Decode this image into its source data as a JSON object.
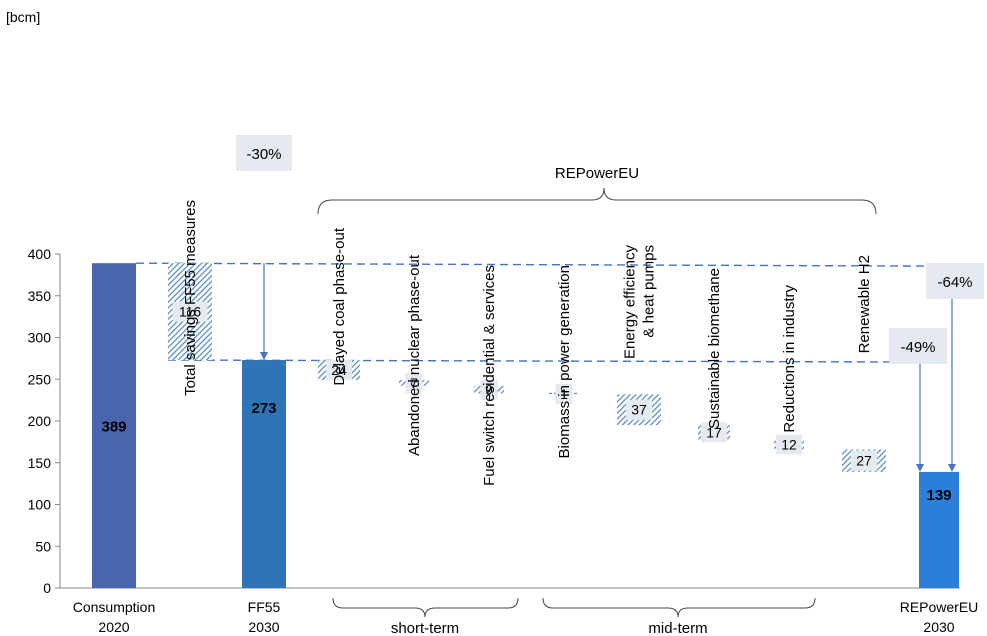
{
  "chart_data": {
    "type": "bar",
    "subtype": "waterfall",
    "y_unit_label": "[bcm]",
    "ylim": [
      0,
      400
    ],
    "yticks": [
      0,
      50,
      100,
      150,
      200,
      250,
      300,
      350,
      400
    ],
    "grid": false,
    "totals": [
      {
        "label_lines": [
          "Consumption",
          "2020"
        ],
        "value": 389,
        "value_label": "389",
        "color": "#4a64ad"
      },
      {
        "label_lines": [
          "FF55",
          "2030"
        ],
        "value": 273,
        "value_label": "273",
        "color": "#2e74b8"
      },
      {
        "label_lines": [
          "REPowerEU",
          "2030"
        ],
        "value": 139,
        "value_label": "139",
        "color": "#2b7fd8"
      }
    ],
    "steps": [
      {
        "label_lines": [
          "Total savings FF55 measures"
        ],
        "value": 116,
        "value_label": "116"
      },
      {
        "label_lines": [
          "Delayed coal phase-out"
        ],
        "value": 24,
        "value_label": "24"
      },
      {
        "label_lines": [
          "Abandoned nuclear phase-out"
        ],
        "value": 7,
        "value_label": "7"
      },
      {
        "label_lines": [
          "Fuel switch residential & services"
        ],
        "value": 9,
        "value_label": "9"
      },
      {
        "label_lines": [
          "Biomass in power generation"
        ],
        "value": 1,
        "value_label": "1"
      },
      {
        "label_lines": [
          "Energy efficiency",
          "& heat pumps"
        ],
        "value": 37,
        "value_label": "37"
      },
      {
        "label_lines": [
          "Sustainable biomethane"
        ],
        "value": 17,
        "value_label": "17"
      },
      {
        "label_lines": [
          "Reductions in industry"
        ],
        "value": 12,
        "value_label": "12"
      },
      {
        "label_lines": [
          "Renewable H2"
        ],
        "value": 27,
        "value_label": "27"
      }
    ],
    "annotations": {
      "ff55_change": "-30%",
      "repower_vs_ff55": "-49%",
      "repower_vs_2020": "-64%",
      "brace_top": "REPowerEU",
      "brace_short": "short-term",
      "brace_mid": "mid-term"
    }
  }
}
